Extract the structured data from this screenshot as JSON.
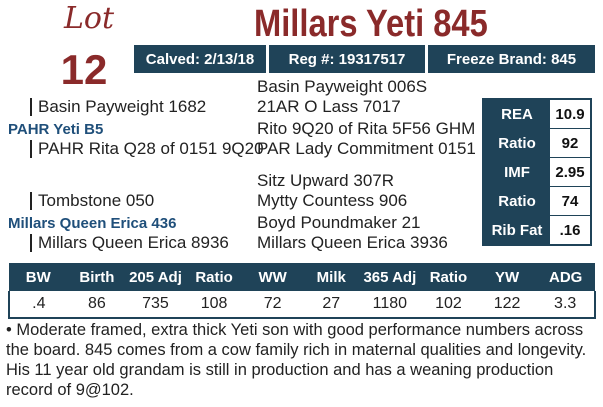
{
  "lot": {
    "word": "Lot",
    "number": "12"
  },
  "title": "Millars Yeti 845",
  "info": {
    "calved": "Calved: 2/13/18",
    "reg": "Reg #: 19317517",
    "freeze_brand": "Freeze Brand: 845"
  },
  "pedigree": {
    "sire": "PAHR Yeti B5",
    "sire_sire": "Basin Payweight 1682",
    "sire_dam": "PAHR Rita Q28 of 0151 9Q20",
    "sss": "Basin Payweight 006S",
    "ssd": "21AR O Lass 7017",
    "sds": "Rito 9Q20 of Rita 5F56 GHM",
    "sdd": "PAR Lady Commitment 0151",
    "dam": "Millars Queen Erica 436",
    "dam_sire": "Tombstone 050",
    "dam_dam": "Millars Queen Erica 8936",
    "dss": "Sitz Upward 307R",
    "dsd": "Mytty Countess 906",
    "dds": "Boyd Poundmaker 21",
    "ddd": "Millars Queen Erica 3936"
  },
  "carcass": [
    {
      "label": "REA",
      "value": "10.9"
    },
    {
      "label": "Ratio",
      "value": "92"
    },
    {
      "label": "IMF",
      "value": "2.95"
    },
    {
      "label": "Ratio",
      "value": "74"
    },
    {
      "label": "Rib Fat",
      "value": ".16"
    }
  ],
  "performance": {
    "headers": [
      "BW",
      "Birth",
      "205 Adj",
      "Ratio",
      "WW",
      "Milk",
      "365 Adj",
      "Ratio",
      "YW",
      "ADG"
    ],
    "values": [
      ".4",
      "86",
      "735",
      "108",
      "72",
      "27",
      "1180",
      "102",
      "122",
      "3.3"
    ]
  },
  "comment": "• Moderate framed, extra thick Yeti son with good performance numbers across the board. 845 comes from a cow family rich in maternal qualities and longevity. His 11 year old grandam is still in production and has a weaning production record of 9@102."
}
